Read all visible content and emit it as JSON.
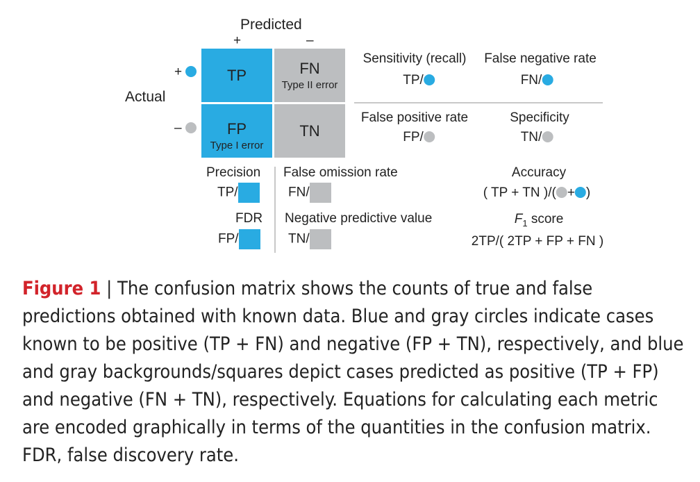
{
  "matrix": {
    "predicted_label": "Predicted",
    "predicted_plus": "+",
    "predicted_minus": "–",
    "actual_label": "Actual",
    "actual_plus": "+",
    "actual_minus": "–",
    "cells": {
      "tp": {
        "label": "TP"
      },
      "fn": {
        "label": "FN",
        "sub": "Type II error"
      },
      "fp": {
        "label": "FP",
        "sub": "Type I error"
      },
      "tn": {
        "label": "TN"
      }
    }
  },
  "metrics": {
    "sensitivity": {
      "title": "Sensitivity (recall)",
      "num": "TP/"
    },
    "fnr": {
      "title": "False negative rate",
      "num": "FN/"
    },
    "fpr": {
      "title": "False positive rate",
      "num": "FP/"
    },
    "specificity": {
      "title": "Specificity",
      "num": "TN/"
    },
    "precision": {
      "title": "Precision",
      "num": "TP/"
    },
    "fdr": {
      "title": "FDR",
      "num": "FP/"
    },
    "for": {
      "title": "False omission rate",
      "num": "FN/"
    },
    "npv": {
      "title": "Negative predictive value",
      "num": "TN/"
    },
    "accuracy": {
      "title": "Accuracy",
      "pre": "( TP + TN )/(",
      "plus": "+",
      "post": ")"
    },
    "f1": {
      "title_f": "F",
      "title_sub": "1",
      "title_rest": " score",
      "formula": "2TP/( 2TP + FP + FN )"
    }
  },
  "colors": {
    "blue": "#29abe2",
    "gray": "#bcbec0",
    "caption_red": "#d2232a"
  },
  "caption": {
    "figure_label": "Figure 1",
    "separator": " | ",
    "text": "The confusion matrix shows the counts of true and false predictions obtained with known data. Blue and gray circles indicate cases known to be positive (TP + FN) and negative (FP + TN), respectively, and blue and gray backgrounds/squares depict cases predicted as positive (TP + FP) and negative (FN + TN), respectively. Equations for calculating each metric are encoded graphically in terms of the quantities in the confusion matrix. FDR, false discovery rate."
  }
}
